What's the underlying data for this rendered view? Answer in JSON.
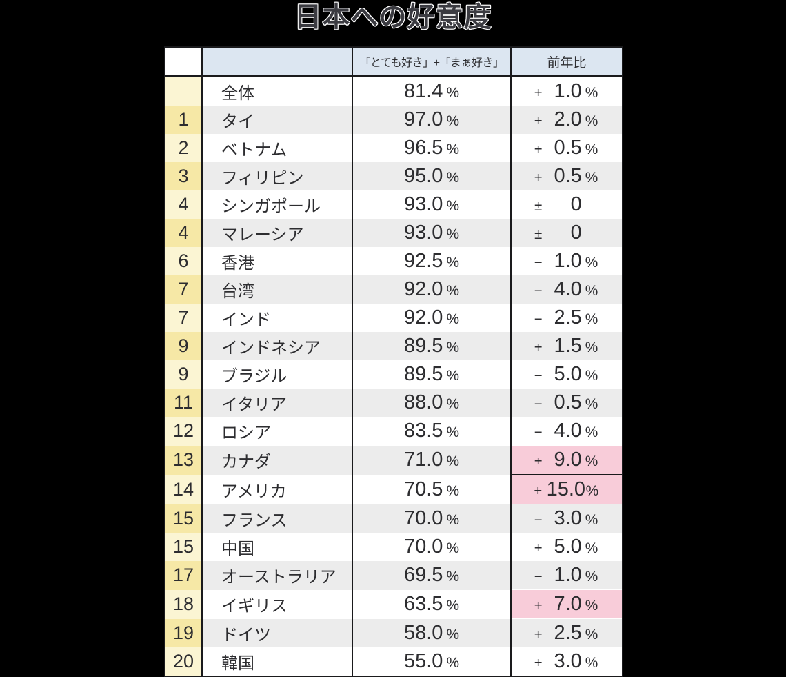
{
  "chart_data": {
    "type": "table",
    "title": "日本への好意度",
    "headers": {
      "rank": "",
      "country": "",
      "score": "「とても好き」+「まぁ好き」",
      "change": "前年比"
    },
    "value_unit": "%",
    "rows": [
      {
        "rank": "",
        "country": "全体",
        "value": "81.4",
        "change_sign": "+",
        "change_value": "1.0",
        "change_unit": "%",
        "highlight": false,
        "divider_below": false
      },
      {
        "rank": "1",
        "country": "タイ",
        "value": "97.0",
        "change_sign": "+",
        "change_value": "2.0",
        "change_unit": "%",
        "highlight": false,
        "divider_below": false
      },
      {
        "rank": "2",
        "country": "ベトナム",
        "value": "96.5",
        "change_sign": "+",
        "change_value": "0.5",
        "change_unit": "%",
        "highlight": false,
        "divider_below": false
      },
      {
        "rank": "3",
        "country": "フィリピン",
        "value": "95.0",
        "change_sign": "+",
        "change_value": "0.5",
        "change_unit": "%",
        "highlight": false,
        "divider_below": false
      },
      {
        "rank": "4",
        "country": "シンガポール",
        "value": "93.0",
        "change_sign": "±",
        "change_value": "0",
        "change_unit": "",
        "highlight": false,
        "divider_below": false
      },
      {
        "rank": "4",
        "country": "マレーシア",
        "value": "93.0",
        "change_sign": "±",
        "change_value": "0",
        "change_unit": "",
        "highlight": false,
        "divider_below": false
      },
      {
        "rank": "6",
        "country": "香港",
        "value": "92.5",
        "change_sign": "−",
        "change_value": "1.0",
        "change_unit": "%",
        "highlight": false,
        "divider_below": false
      },
      {
        "rank": "7",
        "country": "台湾",
        "value": "92.0",
        "change_sign": "−",
        "change_value": "4.0",
        "change_unit": "%",
        "highlight": false,
        "divider_below": false
      },
      {
        "rank": "7",
        "country": "インド",
        "value": "92.0",
        "change_sign": "−",
        "change_value": "2.5",
        "change_unit": "%",
        "highlight": false,
        "divider_below": false
      },
      {
        "rank": "9",
        "country": "インドネシア",
        "value": "89.5",
        "change_sign": "+",
        "change_value": "1.5",
        "change_unit": "%",
        "highlight": false,
        "divider_below": false
      },
      {
        "rank": "9",
        "country": "ブラジル",
        "value": "89.5",
        "change_sign": "−",
        "change_value": "5.0",
        "change_unit": "%",
        "highlight": false,
        "divider_below": false
      },
      {
        "rank": "11",
        "country": "イタリア",
        "value": "88.0",
        "change_sign": "−",
        "change_value": "0.5",
        "change_unit": "%",
        "highlight": false,
        "divider_below": false
      },
      {
        "rank": "12",
        "country": "ロシア",
        "value": "83.5",
        "change_sign": "−",
        "change_value": "4.0",
        "change_unit": "%",
        "highlight": false,
        "divider_below": false
      },
      {
        "rank": "13",
        "country": "カナダ",
        "value": "71.0",
        "change_sign": "+",
        "change_value": "9.0",
        "change_unit": "%",
        "highlight": true,
        "divider_below": true
      },
      {
        "rank": "14",
        "country": "アメリカ",
        "value": "70.5",
        "change_sign": "+",
        "change_value": "15.0",
        "change_unit": "%",
        "highlight": true,
        "divider_below": false
      },
      {
        "rank": "15",
        "country": "フランス",
        "value": "70.0",
        "change_sign": "−",
        "change_value": "3.0",
        "change_unit": "%",
        "highlight": false,
        "divider_below": false
      },
      {
        "rank": "15",
        "country": "中国",
        "value": "70.0",
        "change_sign": "+",
        "change_value": "5.0",
        "change_unit": "%",
        "highlight": false,
        "divider_below": false
      },
      {
        "rank": "17",
        "country": "オーストラリア",
        "value": "69.5",
        "change_sign": "−",
        "change_value": "1.0",
        "change_unit": "%",
        "highlight": false,
        "divider_below": false
      },
      {
        "rank": "18",
        "country": "イギリス",
        "value": "63.5",
        "change_sign": "+",
        "change_value": "7.0",
        "change_unit": "%",
        "highlight": true,
        "divider_below": false
      },
      {
        "rank": "19",
        "country": "ドイツ",
        "value": "58.0",
        "change_sign": "+",
        "change_value": "2.5",
        "change_unit": "%",
        "highlight": false,
        "divider_below": false
      },
      {
        "rank": "20",
        "country": "韓国",
        "value": "55.0",
        "change_sign": "+",
        "change_value": "3.0",
        "change_unit": "%",
        "highlight": false,
        "divider_below": false
      }
    ]
  },
  "colors": {
    "background": "#000000",
    "title_text": "#3b3b41",
    "title_halo": "#ffffff",
    "header_bg": "#dce6f1",
    "rank_light": "#fbf5d3",
    "rank_dark": "#f6e8a6",
    "row_light": "#ffffff",
    "row_dark": "#ececec",
    "highlight": "#f8ccd9",
    "border": "#1a1a1c",
    "text": "#2d2d30"
  }
}
